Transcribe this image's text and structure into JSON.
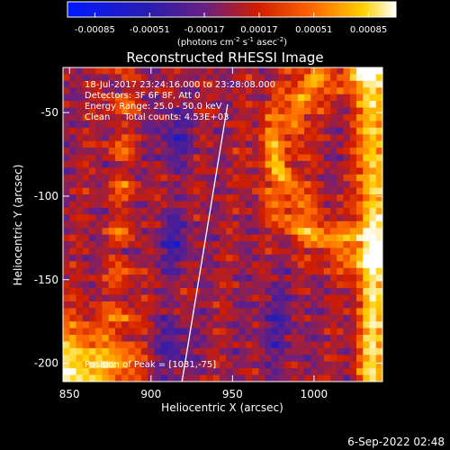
{
  "chart_data": {
    "type": "heatmap",
    "title": "Reconstructed RHESSI Image",
    "xlabel": "Heliocentric X (arcsec)",
    "ylabel": "Heliocentric Y (arcsec)",
    "xlim": [
      846,
      1042
    ],
    "ylim": [
      -211,
      -23
    ],
    "x_ticks": [
      850,
      900,
      950,
      1000
    ],
    "y_ticks": [
      -50,
      -100,
      -150,
      -200
    ],
    "colorbar": {
      "min": -0.00085,
      "max": 0.00085,
      "tick_labels": [
        "-0.00085",
        "-0.00051",
        "-0.00017",
        "0.00017",
        "0.00051",
        "0.00085"
      ],
      "units_prefix": "(photons cm",
      "units_exp1": "-2",
      "units_mid": " s",
      "units_exp2": "-1",
      "units_mid2": " asec",
      "units_exp3": "-2",
      "units_suffix": ")",
      "colors": [
        "#0018ff",
        "#2a1cb0",
        "#6a2080",
        "#d01d00",
        "#ff6a00",
        "#ffd000",
        "#ffffff"
      ]
    },
    "annotations": [
      "18-Jul-2017 23:24:16.000 to 23:28:08.000",
      "Detectors: 3F 6F 8F, Att 0",
      "Energy Range: 25.0 - 50.0 keV",
      "Clean     Total counts: 4.53E+03"
    ],
    "peak_label": "Position of Peak = [1031,-75]",
    "peak": [
      1031,
      -75
    ],
    "limb_line": [
      [
        919,
        -211
      ],
      [
        947,
        -45
      ]
    ],
    "grid": false
  },
  "footer": {
    "timestamp": "6-Sep-2022 02:48"
  }
}
